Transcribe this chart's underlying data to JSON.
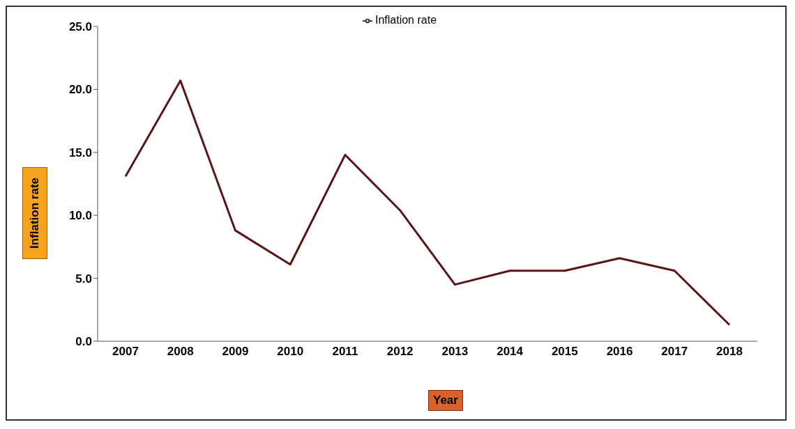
{
  "chart_data": {
    "type": "line",
    "xlabel": "Year",
    "ylabel": "Inflation rate",
    "categories": [
      "2007",
      "2008",
      "2009",
      "2010",
      "2011",
      "2012",
      "2013",
      "2014",
      "2015",
      "2016",
      "2017",
      "2018"
    ],
    "series": [
      {
        "name": "Inflation rate",
        "color": "#5a1414",
        "values": [
          13.1,
          20.7,
          8.8,
          6.1,
          14.8,
          10.4,
          4.5,
          5.6,
          5.6,
          6.6,
          5.6,
          1.3
        ]
      }
    ],
    "ylim": [
      0,
      25
    ],
    "yticks": [
      {
        "value": 0,
        "label": "0.0"
      },
      {
        "value": 5,
        "label": "5.0"
      },
      {
        "value": 10,
        "label": "10.0"
      },
      {
        "value": 15,
        "label": "15.0"
      },
      {
        "value": 20,
        "label": "20.0"
      },
      {
        "value": 25,
        "label": "25.0"
      }
    ],
    "grid": false,
    "legend": "top",
    "marker": "none",
    "line_style": "solid"
  }
}
